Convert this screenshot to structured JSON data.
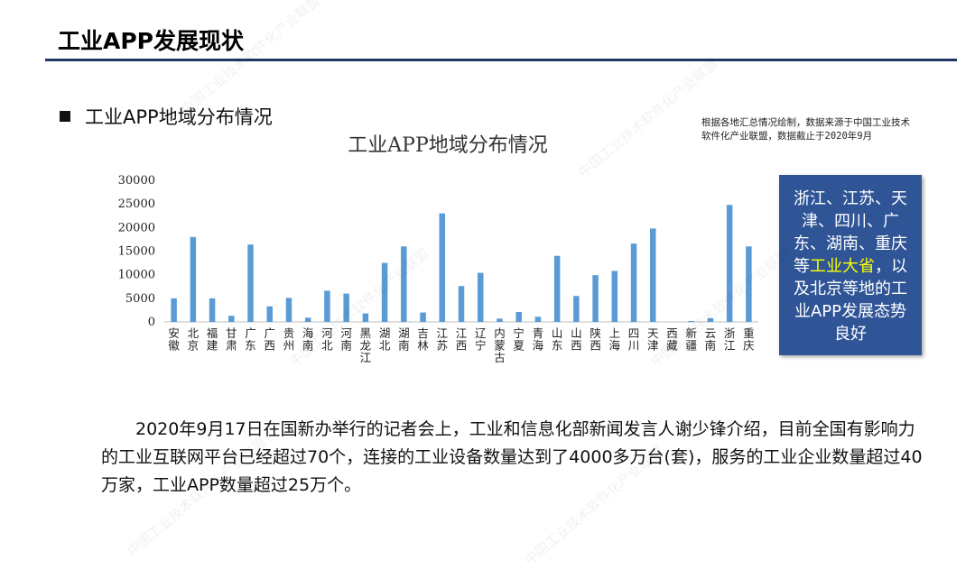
{
  "header": {
    "title": "工业APP发展现状"
  },
  "section": {
    "bullet": "工业APP地域分布情况"
  },
  "source_note": "根据各地汇总情况绘制，数据来源于中国工业技术软件化产业联盟，数据截止于2020年9月",
  "callout": {
    "part1": "浙江、江苏、天津、四川、广东、湖南、重庆等",
    "highlight": "工业大省",
    "part2": "，以及北京等地的工业APP发展态势良好",
    "bg_color": "#2f5597",
    "highlight_color": "#ffff00"
  },
  "body": {
    "paragraph": "2020年9月17日在国新办举行的记者会上，工业和信息化部新闻发言人谢少锋介绍，目前全国有影响力的工业互联网平台已经超过70个，连接的工业设备数量达到了4000多万台(套)，服务的工业企业数量超过40万家，工业APP数量超过25万个。"
  },
  "watermark_text": "中国工业技术软件化产业联盟",
  "chart_data": {
    "type": "bar",
    "title": "工业APP地域分布情况",
    "xlabel": "",
    "ylabel": "",
    "ylim": [
      0,
      30000
    ],
    "yticks": [
      0,
      5000,
      10000,
      15000,
      20000,
      25000,
      30000
    ],
    "grid": false,
    "bar_color": "#5b9bd5",
    "categories": [
      "安徽",
      "北京",
      "福建",
      "甘肃",
      "广东",
      "广西",
      "贵州",
      "海南",
      "河北",
      "河南",
      "黑龙江",
      "湖北",
      "湖南",
      "吉林",
      "江苏",
      "江西",
      "辽宁",
      "内蒙古",
      "宁夏",
      "青海",
      "山东",
      "山西",
      "陕西",
      "上海",
      "四川",
      "天津",
      "西藏",
      "新疆",
      "云南",
      "浙江",
      "重庆"
    ],
    "values": [
      5000,
      18000,
      5000,
      1300,
      16400,
      3300,
      5100,
      900,
      6600,
      6000,
      1800,
      12500,
      16000,
      2000,
      23000,
      7600,
      10400,
      700,
      2100,
      1100,
      14000,
      5500,
      9900,
      10800,
      16600,
      19800,
      0,
      200,
      800,
      24800,
      16000
    ]
  }
}
